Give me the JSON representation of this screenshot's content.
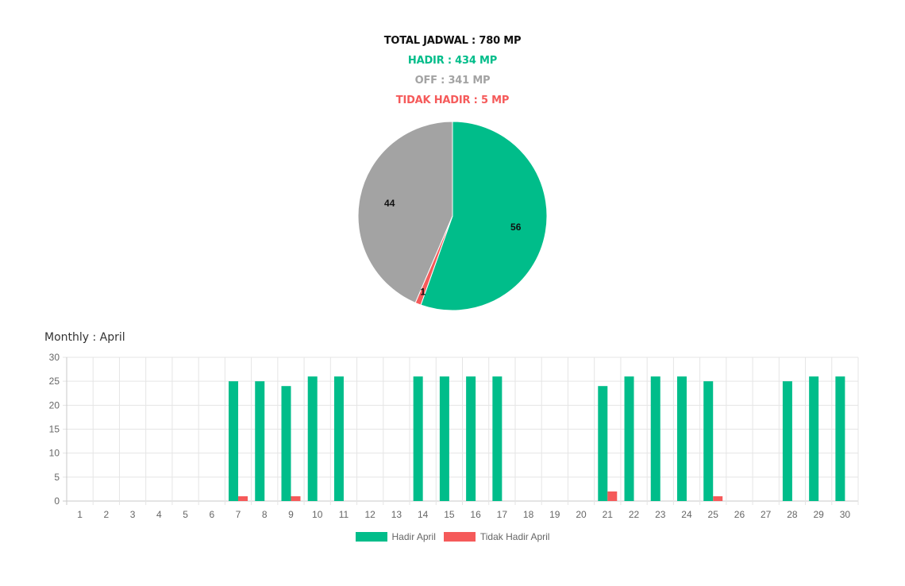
{
  "summary": {
    "total": "TOTAL JADWAL : 780 MP",
    "hadir": "HADIR : 434 MP",
    "off": "OFF : 341 MP",
    "tidak_hadir": "TIDAK HADIR : 5 MP"
  },
  "colors": {
    "total": "#111111",
    "hadir": "#00bd8a",
    "off": "#a3a3a3",
    "tidak_hadir": "#f55a5a",
    "grid": "#e5e5e5",
    "tick": "#666666"
  },
  "monthly": {
    "title": "Monthly : April"
  },
  "chart_data": [
    {
      "type": "pie",
      "slices": [
        {
          "value": 56,
          "label": "56",
          "color": "#00bd8a"
        },
        {
          "value": 1,
          "label": "1",
          "color": "#f55a5a"
        },
        {
          "value": 44,
          "label": "44",
          "color": "#a3a3a3"
        }
      ]
    },
    {
      "type": "bar",
      "categories": [
        "1",
        "2",
        "3",
        "4",
        "5",
        "6",
        "7",
        "8",
        "9",
        "10",
        "11",
        "12",
        "13",
        "14",
        "15",
        "16",
        "17",
        "18",
        "19",
        "20",
        "21",
        "22",
        "23",
        "24",
        "25",
        "26",
        "27",
        "28",
        "29",
        "30"
      ],
      "series": [
        {
          "name": "Hadir April",
          "color": "#00bd8a",
          "values": [
            0,
            0,
            0,
            0,
            0,
            0,
            25,
            25,
            24,
            26,
            26,
            0,
            0,
            26,
            26,
            26,
            26,
            0,
            0,
            0,
            24,
            26,
            26,
            26,
            25,
            0,
            0,
            25,
            26,
            26
          ]
        },
        {
          "name": "Tidak Hadir April",
          "color": "#f55a5a",
          "values": [
            0,
            0,
            0,
            0,
            0,
            0,
            1,
            0,
            1,
            0,
            0,
            0,
            0,
            0,
            0,
            0,
            0,
            0,
            0,
            0,
            2,
            0,
            0,
            0,
            1,
            0,
            0,
            0,
            0,
            0
          ]
        }
      ],
      "ylim": [
        0,
        30
      ],
      "yticks": [
        0,
        5,
        10,
        15,
        20,
        25,
        30
      ],
      "grid": true,
      "legend": "bottom"
    }
  ]
}
